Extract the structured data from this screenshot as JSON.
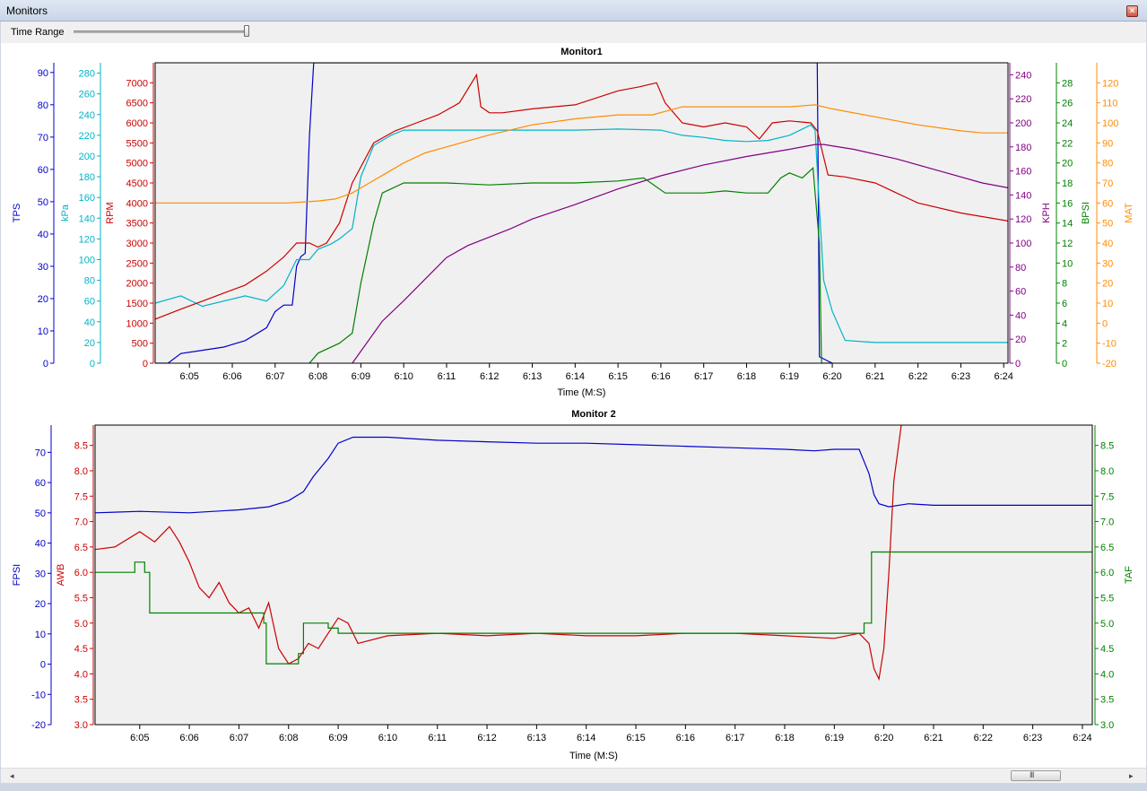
{
  "window": {
    "title": "Monitors"
  },
  "toolbar": {
    "time_range_label": "Time Range",
    "time_range_fraction": 1.0
  },
  "scrollbar": {
    "grip": "III",
    "left_arrow": "◂",
    "right_arrow": "▸"
  },
  "time_ticks": [
    "6:05",
    "6:06",
    "6:07",
    "6:08",
    "6:09",
    "6:10",
    "6:11",
    "6:12",
    "6:13",
    "6:14",
    "6:15",
    "6:16",
    "6:17",
    "6:18",
    "6:19",
    "6:20",
    "6:21",
    "6:22",
    "6:23",
    "6:24"
  ],
  "colors": {
    "TPS": "#0000cc",
    "kPa": "#00b4c8",
    "RPM": "#cc0000",
    "KPH": "#800080",
    "BPSI": "#008000",
    "MAT": "#ff8c00",
    "FPSI": "#0000cc",
    "AWB": "#cc0000",
    "TAF": "#008000",
    "plot_bg": "#f0f0f0"
  },
  "chart_data": [
    {
      "type": "line",
      "title": "Monitor1",
      "xlabel": "Time (M:S)",
      "xlim": [
        "6:04.2",
        "6:24.1"
      ],
      "grid": false,
      "axes": {
        "TPS": {
          "label": "TPS",
          "side": "left",
          "ylim": [
            0,
            93
          ],
          "ticks": [
            "0",
            "10",
            "20",
            "30",
            "40",
            "50",
            "60",
            "70",
            "80",
            "90"
          ]
        },
        "kPa": {
          "label": "kPa",
          "side": "left",
          "ylim": [
            0,
            290
          ],
          "ticks": [
            "0",
            "20",
            "40",
            "60",
            "80",
            "100",
            "120",
            "140",
            "160",
            "180",
            "200",
            "220",
            "240",
            "260",
            "280"
          ]
        },
        "RPM": {
          "label": "RPM",
          "side": "left",
          "ylim": [
            0,
            7500
          ],
          "ticks": [
            "0",
            "500",
            "1000",
            "1500",
            "2000",
            "2500",
            "3000",
            "3500",
            "4000",
            "4500",
            "5000",
            "5500",
            "6000",
            "6500",
            "7000"
          ]
        },
        "KPH": {
          "label": "KPH",
          "side": "right",
          "ylim": [
            0,
            250
          ],
          "ticks": [
            "0",
            "20",
            "40",
            "60",
            "80",
            "100",
            "120",
            "140",
            "160",
            "180",
            "200",
            "220",
            "240"
          ]
        },
        "BPSI": {
          "label": "BPSI",
          "side": "right",
          "ylim": [
            0,
            30
          ],
          "ticks": [
            "0",
            "2",
            "4",
            "6",
            "8",
            "10",
            "12",
            "14",
            "16",
            "18",
            "20",
            "22",
            "24",
            "26",
            "28"
          ]
        },
        "MAT": {
          "label": "MAT",
          "side": "right",
          "ylim": [
            -20,
            130
          ],
          "ticks": [
            "-20",
            "-10",
            "0",
            "10",
            "20",
            "30",
            "40",
            "50",
            "60",
            "70",
            "80",
            "90",
            "100",
            "110",
            "120"
          ]
        }
      },
      "series": [
        {
          "name": "TPS",
          "axis": "TPS",
          "x": [
            "6:04.2",
            "6:04.5",
            "6:04.8",
            "6:05.3",
            "6:05.8",
            "6:06.3",
            "6:06.8",
            "6:07.0",
            "6:07.2",
            "6:07.4",
            "6:07.5",
            "6:07.6",
            "6:07.7",
            "6:07.8",
            "6:07.9",
            "6:07.95",
            "6:08.1",
            "6:19.65",
            "6:19.67",
            "6:19.7",
            "6:20.0"
          ],
          "y": [
            0,
            0,
            3,
            4,
            5,
            7,
            11,
            16,
            18,
            18,
            30,
            33,
            34,
            70,
            93,
            93,
            93,
            93,
            60,
            2,
            0
          ]
        },
        {
          "name": "kPa",
          "axis": "kPa",
          "x": [
            "6:04.2",
            "6:04.8",
            "6:05.3",
            "6:06.3",
            "6:06.8",
            "6:07.2",
            "6:07.5",
            "6:07.8",
            "6:08.0",
            "6:08.3",
            "6:08.5",
            "6:08.8",
            "6:09.0",
            "6:09.3",
            "6:09.7",
            "6:10.0",
            "6:11.0",
            "6:12.0",
            "6:13.0",
            "6:14.0",
            "6:15.0",
            "6:16.0",
            "6:16.5",
            "6:17.0",
            "6:17.5",
            "6:18.0",
            "6:18.5",
            "6:19.0",
            "6:19.5",
            "6:19.6",
            "6:19.7",
            "6:19.8",
            "6:20.0",
            "6:20.3",
            "6:21.0",
            "6:22.0",
            "6:23.0",
            "6:24.1"
          ],
          "y": [
            58,
            65,
            55,
            65,
            60,
            75,
            100,
            100,
            110,
            115,
            120,
            130,
            180,
            210,
            220,
            225,
            225,
            225,
            225,
            225,
            226,
            225,
            220,
            218,
            215,
            214,
            215,
            220,
            230,
            225,
            150,
            80,
            50,
            22,
            20,
            20,
            20,
            20
          ]
        },
        {
          "name": "RPM",
          "axis": "RPM",
          "x": [
            "6:04.2",
            "6:04.8",
            "6:05.3",
            "6:05.8",
            "6:06.3",
            "6:06.8",
            "6:07.2",
            "6:07.5",
            "6:07.8",
            "6:08.0",
            "6:08.2",
            "6:08.5",
            "6:08.8",
            "6:09.3",
            "6:09.8",
            "6:10.3",
            "6:10.8",
            "6:11.3",
            "6:11.7",
            "6:11.8",
            "6:12.0",
            "6:12.3",
            "6:13.0",
            "6:13.5",
            "6:14.0",
            "6:15.0",
            "6:15.5",
            "6:15.9",
            "6:16.1",
            "6:16.5",
            "6:17.0",
            "6:17.5",
            "6:18.0",
            "6:18.3",
            "6:18.6",
            "6:19.0",
            "6:19.5",
            "6:19.65",
            "6:19.9",
            "6:20.3",
            "6:21.0",
            "6:21.5",
            "6:22.0",
            "6:23.0",
            "6:24.1"
          ],
          "y": [
            1100,
            1350,
            1550,
            1750,
            1950,
            2300,
            2650,
            3000,
            3000,
            2900,
            3000,
            3500,
            4500,
            5500,
            5800,
            6000,
            6200,
            6500,
            7200,
            6400,
            6250,
            6250,
            6350,
            6400,
            6450,
            6800,
            6900,
            7000,
            6500,
            6000,
            5900,
            6000,
            5900,
            5600,
            6000,
            6050,
            6000,
            5800,
            4700,
            4650,
            4500,
            4250,
            4000,
            3750,
            3550
          ]
        },
        {
          "name": "KPH",
          "axis": "KPH",
          "x": [
            "6:08.8",
            "6:09.0",
            "6:09.5",
            "6:10.0",
            "6:10.5",
            "6:11.0",
            "6:11.5",
            "6:12.0",
            "6:12.5",
            "6:13.0",
            "6:14.0",
            "6:15.0",
            "6:16.0",
            "6:17.0",
            "6:18.0",
            "6:19.0",
            "6:19.6",
            "6:19.8",
            "6:20.5",
            "6:21.5",
            "6:22.5",
            "6:23.5",
            "6:24.1"
          ],
          "y": [
            0,
            10,
            35,
            52,
            70,
            88,
            98,
            105,
            112,
            120,
            132,
            145,
            156,
            165,
            172,
            178,
            182,
            182,
            178,
            170,
            160,
            150,
            146
          ]
        },
        {
          "name": "BPSI",
          "axis": "BPSI",
          "x": [
            "6:07.8",
            "6:08.0",
            "6:08.5",
            "6:08.8",
            "6:09.0",
            "6:09.3",
            "6:09.5",
            "6:10.0",
            "6:11.0",
            "6:12.0",
            "6:13.0",
            "6:14.0",
            "6:15.0",
            "6:15.6",
            "6:16.1",
            "6:16.3",
            "6:17.0",
            "6:17.5",
            "6:18.0",
            "6:18.5",
            "6:18.8",
            "6:19.0",
            "6:19.3",
            "6:19.55",
            "6:19.6",
            "6:19.7",
            "6:19.75",
            "6:20.0"
          ],
          "y": [
            0,
            1,
            2,
            3,
            8,
            14,
            17,
            18,
            18,
            17.8,
            18,
            18,
            18.2,
            18.5,
            17,
            17,
            17,
            17.2,
            17,
            17,
            18.5,
            19,
            18.5,
            19.5,
            17,
            12,
            0,
            0
          ]
        },
        {
          "name": "MAT",
          "axis": "MAT",
          "x": [
            "6:04.2",
            "6:05.3",
            "6:06.3",
            "6:07.3",
            "6:08.0",
            "6:08.4",
            "6:08.8",
            "6:09.2",
            "6:09.6",
            "6:10.0",
            "6:10.5",
            "6:11.0",
            "6:11.5",
            "6:12.0",
            "6:13.0",
            "6:14.0",
            "6:15.0",
            "6:15.8",
            "6:16.5",
            "6:18.0",
            "6:19.0",
            "6:19.6",
            "6:20.0",
            "6:21.0",
            "6:22.0",
            "6:23.0",
            "6:23.5",
            "6:24.1"
          ],
          "y": [
            60,
            60,
            60,
            60,
            61,
            62,
            65,
            70,
            75,
            80,
            85,
            88,
            91,
            94,
            99,
            102,
            104,
            104,
            108,
            108,
            108,
            109,
            107,
            103,
            99,
            96,
            95,
            95
          ]
        }
      ]
    },
    {
      "type": "line",
      "title": "Monitor 2",
      "xlabel": "Time (M:S)",
      "xlim": [
        "6:04.1",
        "6:24.2"
      ],
      "grid": false,
      "axes": {
        "FPSI": {
          "label": "FPSI",
          "side": "left",
          "ylim": [
            -20,
            79
          ],
          "ticks": [
            "-20",
            "-10",
            "0",
            "10",
            "20",
            "30",
            "40",
            "50",
            "60",
            "70"
          ]
        },
        "AWB": {
          "label": "AWB",
          "side": "left",
          "ylim": [
            3.0,
            8.9
          ],
          "ticks": [
            "3.0",
            "3.5",
            "4.0",
            "4.5",
            "5.0",
            "5.5",
            "6.0",
            "6.5",
            "7.0",
            "7.5",
            "8.0",
            "8.5"
          ]
        },
        "TAF": {
          "label": "TAF",
          "side": "right",
          "ylim": [
            3.0,
            8.9
          ],
          "ticks": [
            "3.0",
            "3.5",
            "4.0",
            "4.5",
            "5.0",
            "5.5",
            "6.0",
            "6.5",
            "7.0",
            "7.5",
            "8.0",
            "8.5"
          ]
        }
      },
      "series": [
        {
          "name": "FPSI",
          "axis": "FPSI",
          "x": [
            "6:04.1",
            "6:05.0",
            "6:06.0",
            "6:07.0",
            "6:07.6",
            "6:08.0",
            "6:08.3",
            "6:08.5",
            "6:08.8",
            "6:09.0",
            "6:09.3",
            "6:10.0",
            "6:11.0",
            "6:12.0",
            "6:13.0",
            "6:14.0",
            "6:15.0",
            "6:16.0",
            "6:17.0",
            "6:18.0",
            "6:18.6",
            "6:19.0",
            "6:19.5",
            "6:19.7",
            "6:19.8",
            "6:19.9",
            "6:20.1",
            "6:20.5",
            "6:21.0",
            "6:22.0",
            "6:23.0",
            "6:24.2"
          ],
          "y": [
            50,
            50.5,
            50,
            51,
            52,
            54,
            57,
            62,
            68,
            73,
            75,
            75,
            74,
            73.5,
            73,
            73,
            72.5,
            72,
            71.5,
            71,
            70.5,
            71,
            71,
            63,
            56,
            53,
            52,
            53,
            52.5,
            52.5,
            52.5,
            52.5
          ]
        },
        {
          "name": "AWB",
          "axis": "AWB",
          "x": [
            "6:04.1",
            "6:04.5",
            "6:05.0",
            "6:05.3",
            "6:05.6",
            "6:05.8",
            "6:06.0",
            "6:06.2",
            "6:06.4",
            "6:06.6",
            "6:06.8",
            "6:07.0",
            "6:07.2",
            "6:07.4",
            "6:07.6",
            "6:07.8",
            "6:08.0",
            "6:08.2",
            "6:08.4",
            "6:08.6",
            "6:08.8",
            "6:09.0",
            "6:09.2",
            "6:09.4",
            "6:10.0",
            "6:11.0",
            "6:12.0",
            "6:13.0",
            "6:14.0",
            "6:15.0",
            "6:16.0",
            "6:17.0",
            "6:18.0",
            "6:19.0",
            "6:19.5",
            "6:19.7",
            "6:19.8",
            "6:19.9",
            "6:20.0",
            "6:20.1",
            "6:20.2",
            "6:20.35"
          ],
          "y": [
            6.45,
            6.5,
            6.8,
            6.6,
            6.9,
            6.6,
            6.2,
            5.7,
            5.5,
            5.8,
            5.4,
            5.2,
            5.3,
            4.9,
            5.4,
            4.5,
            4.2,
            4.3,
            4.6,
            4.5,
            4.8,
            5.1,
            5.0,
            4.6,
            4.75,
            4.8,
            4.75,
            4.8,
            4.75,
            4.75,
            4.8,
            4.8,
            4.75,
            4.7,
            4.8,
            4.6,
            4.1,
            3.9,
            4.5,
            6.0,
            7.8,
            8.9
          ]
        },
        {
          "name": "TAF",
          "axis": "TAF",
          "x": [
            "6:04.1",
            "6:04.9",
            "6:04.9",
            "6:05.1",
            "6:05.1",
            "6:05.2",
            "6:05.2",
            "6:06.0",
            "6:06.0",
            "6:07.0",
            "6:07.0",
            "6:07.5",
            "6:07.5",
            "6:07.55",
            "6:07.55",
            "6:08.2",
            "6:08.2",
            "6:08.3",
            "6:08.3",
            "6:08.8",
            "6:08.8",
            "6:09.0",
            "6:09.0",
            "6:19.6",
            "6:19.6",
            "6:19.75",
            "6:19.75",
            "6:24.2"
          ],
          "y": [
            6.0,
            6.0,
            6.2,
            6.2,
            6.0,
            6.0,
            5.2,
            5.2,
            5.2,
            5.2,
            5.2,
            5.2,
            5.0,
            5.0,
            4.2,
            4.2,
            4.4,
            4.4,
            5.0,
            5.0,
            4.9,
            4.9,
            4.8,
            4.8,
            5.0,
            5.0,
            6.4,
            6.4
          ]
        }
      ]
    }
  ]
}
